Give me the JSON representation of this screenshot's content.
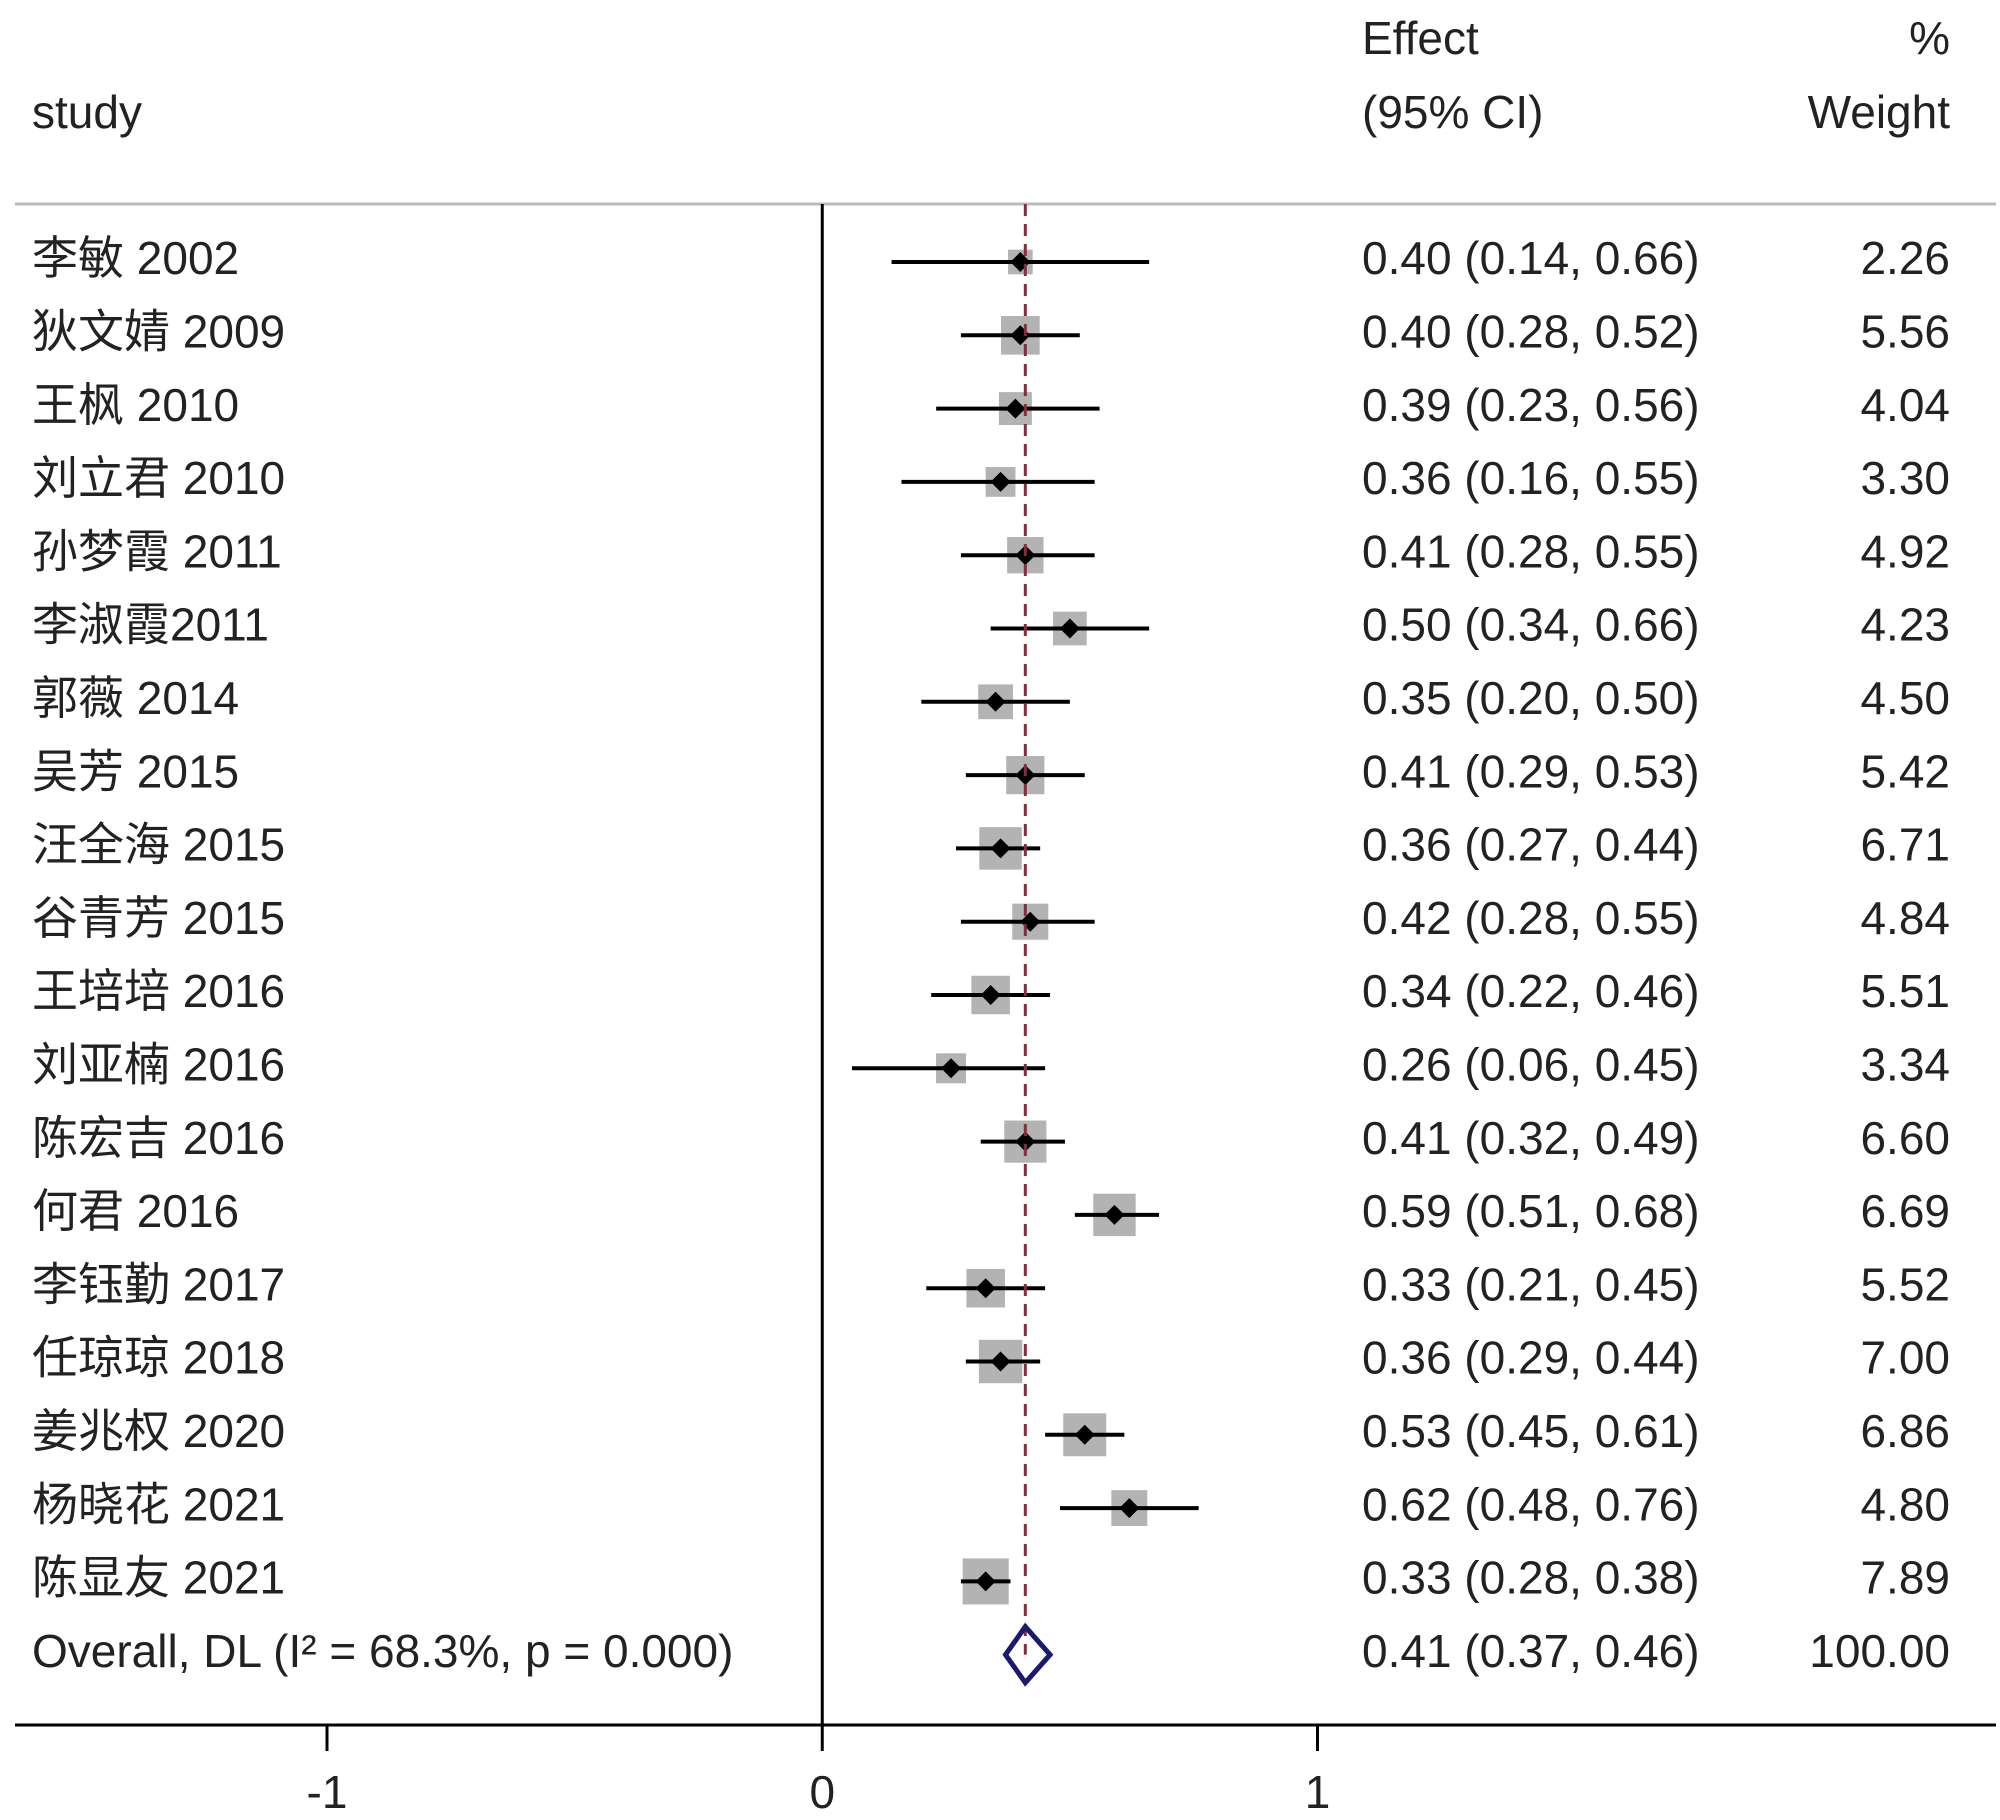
{
  "chart_data": {
    "type": "forest",
    "headers": {
      "study": "study",
      "effect_1": "Effect",
      "effect_2": "(95% CI)",
      "weight_1": "%",
      "weight_2": "Weight"
    },
    "categories": [
      "李敏 2002",
      "狄文婧 2009",
      "王枫 2010",
      "刘立君 2010",
      "孙梦霞 2011",
      "李淑霞2011",
      "郭薇 2014",
      "吴芳 2015",
      "汪全海 2015",
      "谷青芳 2015",
      "王培培 2016",
      "刘亚楠 2016",
      "陈宏吉 2016",
      "何君 2016",
      "李钰勤 2017",
      "任琼琼 2018",
      "姜兆权 2020",
      "杨晓花 2021",
      "陈显友 2021"
    ],
    "values": [
      0.4,
      0.4,
      0.39,
      0.36,
      0.41,
      0.5,
      0.35,
      0.41,
      0.36,
      0.42,
      0.34,
      0.26,
      0.41,
      0.59,
      0.33,
      0.36,
      0.53,
      0.62,
      0.33
    ],
    "lower": [
      0.14,
      0.28,
      0.23,
      0.16,
      0.28,
      0.34,
      0.2,
      0.29,
      0.27,
      0.28,
      0.22,
      0.06,
      0.32,
      0.51,
      0.21,
      0.29,
      0.45,
      0.48,
      0.28
    ],
    "upper": [
      0.66,
      0.52,
      0.56,
      0.55,
      0.55,
      0.66,
      0.5,
      0.53,
      0.44,
      0.55,
      0.46,
      0.45,
      0.49,
      0.68,
      0.45,
      0.44,
      0.61,
      0.76,
      0.38
    ],
    "value_labels": [
      "0.40 (0.14, 0.66)",
      "0.40 (0.28, 0.52)",
      "0.39 (0.23, 0.56)",
      "0.36 (0.16, 0.55)",
      "0.41 (0.28, 0.55)",
      "0.50 (0.34, 0.66)",
      "0.35 (0.20, 0.50)",
      "0.41 (0.29, 0.53)",
      "0.36 (0.27, 0.44)",
      "0.42 (0.28, 0.55)",
      "0.34 (0.22, 0.46)",
      "0.26 (0.06, 0.45)",
      "0.41 (0.32, 0.49)",
      "0.59 (0.51, 0.68)",
      "0.33 (0.21, 0.45)",
      "0.36 (0.29, 0.44)",
      "0.53 (0.45, 0.61)",
      "0.62 (0.48, 0.76)",
      "0.33 (0.28, 0.38)"
    ],
    "weights": [
      2.26,
      5.56,
      4.04,
      3.3,
      4.92,
      4.23,
      4.5,
      5.42,
      6.71,
      4.84,
      5.51,
      3.34,
      6.6,
      6.69,
      5.52,
      7.0,
      6.86,
      4.8,
      7.89
    ],
    "weight_labels": [
      "2.26",
      "5.56",
      "4.04",
      "3.30",
      "4.92",
      "4.23",
      "4.50",
      "5.42",
      "6.71",
      "4.84",
      "5.51",
      "3.34",
      "6.60",
      "6.69",
      "5.52",
      "7.00",
      "6.86",
      "4.80",
      "7.89"
    ],
    "overall": {
      "label": "Overall, DL (I² = 68.3%, p = 0.000)",
      "value": 0.41,
      "lower": 0.37,
      "upper": 0.46,
      "value_label": "0.41 (0.37, 0.46)",
      "weight": 100,
      "weight_label": "100.00"
    },
    "xlim": [
      -1.63,
      2.37
    ],
    "xticks": [
      -1,
      0,
      1
    ],
    "square_color": "#b3b3b3",
    "point_color": "#000000",
    "reference_color": "#8b2b3a",
    "overall_color": "#1a1a6e"
  }
}
